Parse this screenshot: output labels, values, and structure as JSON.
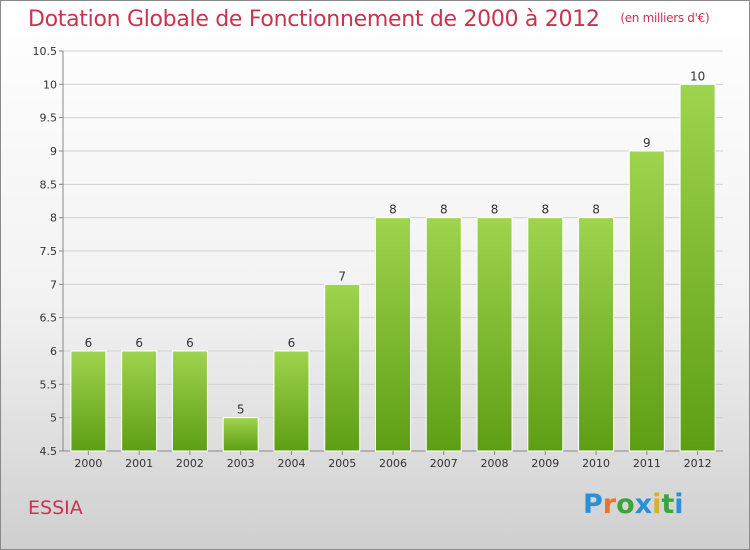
{
  "title": "Dotation Globale de Fonctionnement de 2000 à 2012",
  "unit": "(en milliers d'€)",
  "commune": "ESSIA",
  "logo": {
    "text": "Proxiti",
    "letters": [
      "P",
      "r",
      "o",
      "x",
      "i",
      "t",
      "i"
    ],
    "colors": [
      "#2a8fd6",
      "#e8752a",
      "#3aa53a",
      "#2a8fd6",
      "#d8b02a",
      "#3aa53a",
      "#2a8fd6"
    ]
  },
  "colors": {
    "title": "#c8344f",
    "bar_top": "#9ed44e",
    "bar_bottom": "#5e9e14",
    "grid": "#d0d0d0",
    "axis": "#888888",
    "text": "#333333"
  },
  "chart_data": {
    "type": "bar",
    "title": "Dotation Globale de Fonctionnement de 2000 à 2012",
    "subtitle": "(en milliers d'€)",
    "categories": [
      "2000",
      "2001",
      "2002",
      "2003",
      "2004",
      "2005",
      "2006",
      "2007",
      "2008",
      "2009",
      "2010",
      "2011",
      "2012"
    ],
    "values": [
      6,
      6,
      6,
      5,
      6,
      7,
      8,
      8,
      8,
      8,
      8,
      9,
      10
    ],
    "data_labels": [
      "6",
      "6",
      "6",
      "5",
      "6",
      "7",
      "8",
      "8",
      "8",
      "8",
      "8",
      "9",
      "10"
    ],
    "xlabel": "",
    "ylabel": "",
    "ylim": [
      4.5,
      10.5
    ],
    "yticks": [
      4.5,
      5,
      5.5,
      6,
      6.5,
      7,
      7.5,
      8,
      8.5,
      9,
      9.5,
      10,
      10.5
    ],
    "ytick_labels": [
      "4.5",
      "5",
      "5.5",
      "6",
      "6.5",
      "7",
      "7.5",
      "8",
      "8.5",
      "9",
      "9.5",
      "10",
      "10.5"
    ],
    "grid": true,
    "legend": "none"
  }
}
